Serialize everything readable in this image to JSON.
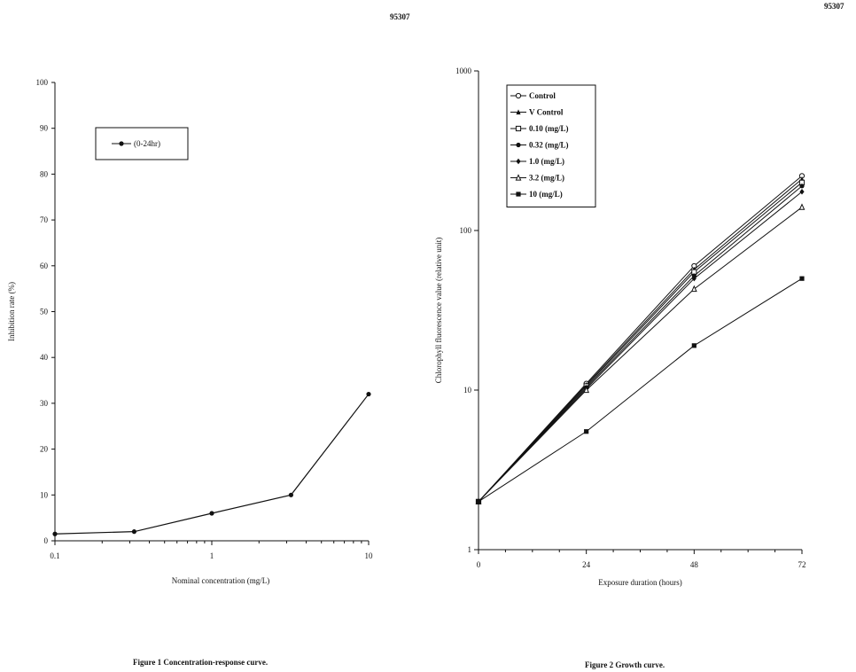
{
  "page_numbers": [
    "95307",
    "95307"
  ],
  "chart_data": [
    {
      "type": "line",
      "caption": "Figure 1    Concentration-response curve.",
      "xlabel": "Nominal concentration (mg/L)",
      "ylabel": "Inhibition rate (%)",
      "xscale": "log",
      "xlim": [
        0.1,
        10
      ],
      "ylim": [
        0,
        100
      ],
      "x_ticks": [
        "0.1",
        "1",
        "10"
      ],
      "y_ticks": [
        "0",
        "10",
        "20",
        "30",
        "40",
        "50",
        "60",
        "70",
        "80",
        "90",
        "100"
      ],
      "legend_position": "top-left",
      "series": [
        {
          "name": "(0-24hr)",
          "x": [
            0.1,
            0.32,
            1.0,
            3.2,
            10
          ],
          "y": [
            1.5,
            2,
            6,
            10,
            32
          ]
        }
      ]
    },
    {
      "type": "line",
      "caption": "Figure 2    Growth curve.",
      "xlabel": "Exposure duration (hours)",
      "ylabel": "Chlorophyll fluorescence value (relative unit)",
      "yscale": "log",
      "xlim": [
        0,
        72
      ],
      "ylim": [
        1,
        1000
      ],
      "x_ticks": [
        "0",
        "24",
        "48",
        "72"
      ],
      "y_ticks": [
        "1",
        "10",
        "100",
        "1000"
      ],
      "legend_position": "top-left",
      "x": [
        0,
        24,
        48,
        72
      ],
      "series": [
        {
          "name": "Control",
          "marker": "open-circle",
          "values": [
            2,
            11,
            60,
            220
          ]
        },
        {
          "name": "V Control",
          "marker": "triangle",
          "values": [
            2,
            10.8,
            57,
            210
          ]
        },
        {
          "name": "0.10 (mg/L)",
          "marker": "open-square",
          "values": [
            2,
            10.6,
            55,
            200
          ]
        },
        {
          "name": "0.32 (mg/L)",
          "marker": "filled-circle",
          "values": [
            2,
            10.4,
            52,
            190
          ]
        },
        {
          "name": "1.0 (mg/L)",
          "marker": "diamond",
          "values": [
            2,
            10.2,
            50,
            175
          ]
        },
        {
          "name": "3.2 (mg/L)",
          "marker": "open-triangle",
          "values": [
            2,
            10,
            43,
            140
          ]
        },
        {
          "name": "10 (mg/L)",
          "marker": "filled-square",
          "values": [
            2,
            5.5,
            19,
            50
          ]
        }
      ]
    }
  ]
}
